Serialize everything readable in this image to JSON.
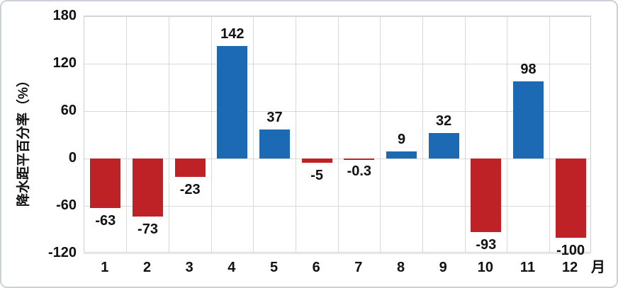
{
  "chart_data": {
    "type": "bar",
    "title": "",
    "categories": [
      "1",
      "2",
      "3",
      "4",
      "5",
      "6",
      "7",
      "8",
      "9",
      "10",
      "11",
      "12"
    ],
    "values": [
      -63,
      -73,
      -23,
      142,
      37,
      -5,
      -0.3,
      9,
      32,
      -93,
      98,
      -100
    ],
    "data_labels": [
      "-63",
      "-73",
      "-23",
      "142",
      "37",
      "-5",
      "-0.3",
      "9",
      "32",
      "-93",
      "98",
      "-100"
    ],
    "xlabel": "月",
    "ylabel": "降水距平百分率（%）",
    "ylim": [
      -120,
      180
    ],
    "yticks": [
      180,
      120,
      60,
      0,
      -60,
      -120
    ],
    "grid": true,
    "legend": "none",
    "colors": {
      "positive_bar": "#1d6ab4",
      "negative_bar": "#be2126",
      "gridline": "#d9d9d9",
      "plot_border": "#cfcfcf",
      "frame_border": "#ccd1d9",
      "text": "#111111",
      "background": "#ffffff"
    }
  }
}
